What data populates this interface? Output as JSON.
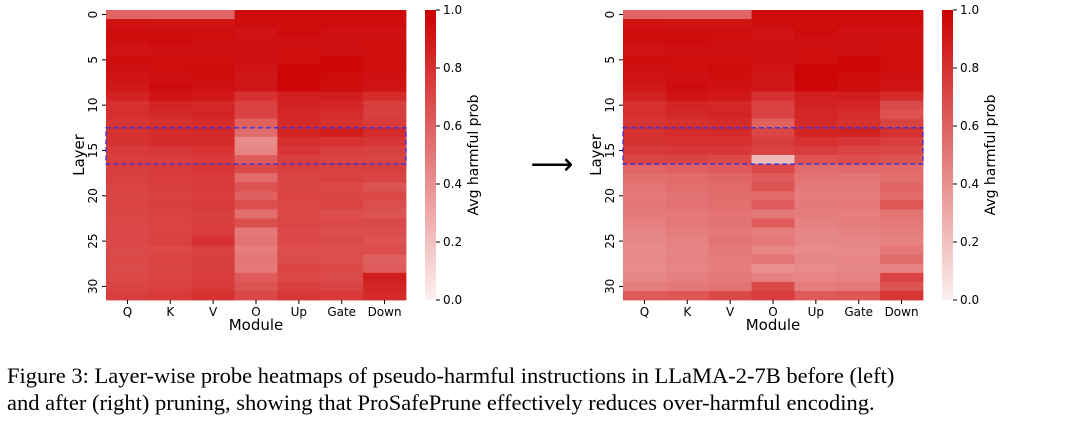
{
  "colors": {
    "high": "#cc0000",
    "low": "#fdf0f0",
    "highlight_box": "#3333dd"
  },
  "arrow_glyph": "⟶",
  "caption": {
    "line1": "Figure 3: Layer-wise probe heatmaps of pseudo-harmful instructions in LLaMA-2-7B before (left)",
    "line2": "and after (right) pruning, showing that ProSafePrune effectively reduces over-harmful encoding."
  },
  "chart_data": [
    {
      "type": "heatmap",
      "panel": "left",
      "xlabel": "Module",
      "ylabel": "Layer",
      "x_categories": [
        "Q",
        "K",
        "V",
        "O",
        "Up",
        "Gate",
        "Down"
      ],
      "y_ticks": [
        "0",
        "5",
        "10",
        "15",
        "20",
        "25",
        "30"
      ],
      "rows": 32,
      "colorbar": {
        "label": "Avg harmful prob",
        "ticks": [
          "0.0",
          "0.2",
          "0.4",
          "0.6",
          "0.8",
          "1.0"
        ],
        "range": [
          0,
          1
        ]
      },
      "highlight_layers": [
        13,
        17
      ],
      "values": [
        [
          0.58,
          0.58,
          0.58,
          0.95,
          0.95,
          0.95,
          0.95
        ],
        [
          0.93,
          0.92,
          0.92,
          0.95,
          0.94,
          0.95,
          0.95
        ],
        [
          0.95,
          0.94,
          0.94,
          0.92,
          0.95,
          0.93,
          0.93
        ],
        [
          0.94,
          0.95,
          0.94,
          0.93,
          0.93,
          0.94,
          0.94
        ],
        [
          0.92,
          0.93,
          0.93,
          0.93,
          0.94,
          0.93,
          0.94
        ],
        [
          0.95,
          0.94,
          0.94,
          0.93,
          0.94,
          0.97,
          0.94
        ],
        [
          0.93,
          0.94,
          0.95,
          0.92,
          0.97,
          0.97,
          0.94
        ],
        [
          0.92,
          0.93,
          0.94,
          0.9,
          0.98,
          0.95,
          0.93
        ],
        [
          0.9,
          0.95,
          0.93,
          0.91,
          0.97,
          0.94,
          0.92
        ],
        [
          0.86,
          0.92,
          0.9,
          0.8,
          0.87,
          0.88,
          0.82
        ],
        [
          0.8,
          0.85,
          0.84,
          0.73,
          0.86,
          0.84,
          0.74
        ],
        [
          0.81,
          0.83,
          0.85,
          0.72,
          0.84,
          0.82,
          0.73
        ],
        [
          0.78,
          0.8,
          0.82,
          0.6,
          0.83,
          0.8,
          0.76
        ],
        [
          0.8,
          0.82,
          0.83,
          0.55,
          0.85,
          0.88,
          0.82
        ],
        [
          0.79,
          0.82,
          0.82,
          0.42,
          0.81,
          0.79,
          0.78
        ],
        [
          0.76,
          0.77,
          0.79,
          0.45,
          0.78,
          0.74,
          0.73
        ],
        [
          0.74,
          0.74,
          0.76,
          0.62,
          0.74,
          0.72,
          0.71
        ],
        [
          0.74,
          0.76,
          0.78,
          0.7,
          0.74,
          0.73,
          0.74
        ],
        [
          0.73,
          0.75,
          0.76,
          0.56,
          0.72,
          0.73,
          0.72
        ],
        [
          0.72,
          0.74,
          0.76,
          0.66,
          0.71,
          0.7,
          0.66
        ],
        [
          0.71,
          0.73,
          0.75,
          0.6,
          0.72,
          0.71,
          0.7
        ],
        [
          0.72,
          0.74,
          0.76,
          0.68,
          0.7,
          0.72,
          0.68
        ],
        [
          0.71,
          0.72,
          0.73,
          0.54,
          0.7,
          0.68,
          0.66
        ],
        [
          0.7,
          0.72,
          0.74,
          0.67,
          0.71,
          0.7,
          0.7
        ],
        [
          0.69,
          0.72,
          0.75,
          0.5,
          0.69,
          0.68,
          0.68
        ],
        [
          0.7,
          0.73,
          0.8,
          0.52,
          0.7,
          0.69,
          0.66
        ],
        [
          0.69,
          0.7,
          0.73,
          0.48,
          0.68,
          0.68,
          0.68
        ],
        [
          0.7,
          0.72,
          0.74,
          0.51,
          0.69,
          0.68,
          0.6
        ],
        [
          0.69,
          0.71,
          0.74,
          0.5,
          0.72,
          0.7,
          0.62
        ],
        [
          0.7,
          0.72,
          0.75,
          0.62,
          0.7,
          0.69,
          0.88
        ],
        [
          0.72,
          0.73,
          0.76,
          0.66,
          0.74,
          0.72,
          0.85
        ],
        [
          0.74,
          0.76,
          0.79,
          0.7,
          0.77,
          0.76,
          0.82
        ]
      ]
    },
    {
      "type": "heatmap",
      "panel": "right",
      "xlabel": "Module",
      "ylabel": "Layer",
      "x_categories": [
        "Q",
        "K",
        "V",
        "O",
        "Up",
        "Gate",
        "Down"
      ],
      "y_ticks": [
        "0",
        "5",
        "10",
        "15",
        "20",
        "25",
        "30"
      ],
      "rows": 32,
      "colorbar": {
        "label": "Avg harmful prob",
        "ticks": [
          "0.0",
          "0.2",
          "0.4",
          "0.6",
          "0.8",
          "1.0"
        ],
        "range": [
          0,
          1
        ]
      },
      "highlight_layers": [
        13,
        17
      ],
      "values": [
        [
          0.58,
          0.58,
          0.58,
          0.95,
          0.95,
          0.95,
          0.95
        ],
        [
          0.93,
          0.92,
          0.92,
          0.95,
          0.94,
          0.95,
          0.95
        ],
        [
          0.95,
          0.94,
          0.94,
          0.92,
          0.95,
          0.93,
          0.93
        ],
        [
          0.94,
          0.95,
          0.94,
          0.93,
          0.93,
          0.94,
          0.94
        ],
        [
          0.92,
          0.93,
          0.93,
          0.93,
          0.94,
          0.93,
          0.94
        ],
        [
          0.95,
          0.94,
          0.94,
          0.93,
          0.94,
          0.97,
          0.94
        ],
        [
          0.93,
          0.94,
          0.95,
          0.92,
          0.97,
          0.97,
          0.94
        ],
        [
          0.92,
          0.93,
          0.94,
          0.9,
          0.98,
          0.95,
          0.93
        ],
        [
          0.9,
          0.95,
          0.93,
          0.91,
          0.97,
          0.94,
          0.92
        ],
        [
          0.86,
          0.92,
          0.9,
          0.8,
          0.87,
          0.88,
          0.82
        ],
        [
          0.8,
          0.85,
          0.84,
          0.73,
          0.86,
          0.84,
          0.7
        ],
        [
          0.81,
          0.83,
          0.85,
          0.72,
          0.84,
          0.82,
          0.66
        ],
        [
          0.78,
          0.8,
          0.82,
          0.6,
          0.83,
          0.8,
          0.72
        ],
        [
          0.8,
          0.82,
          0.83,
          0.7,
          0.85,
          0.86,
          0.8
        ],
        [
          0.79,
          0.8,
          0.8,
          0.74,
          0.8,
          0.78,
          0.74
        ],
        [
          0.76,
          0.77,
          0.77,
          0.72,
          0.75,
          0.72,
          0.7
        ],
        [
          0.72,
          0.72,
          0.7,
          0.22,
          0.66,
          0.68,
          0.66
        ],
        [
          0.58,
          0.6,
          0.62,
          0.7,
          0.55,
          0.56,
          0.56
        ],
        [
          0.54,
          0.56,
          0.58,
          0.62,
          0.52,
          0.52,
          0.54
        ],
        [
          0.52,
          0.54,
          0.56,
          0.66,
          0.5,
          0.5,
          0.58
        ],
        [
          0.5,
          0.52,
          0.55,
          0.56,
          0.48,
          0.48,
          0.56
        ],
        [
          0.51,
          0.53,
          0.54,
          0.62,
          0.49,
          0.5,
          0.64
        ],
        [
          0.49,
          0.5,
          0.52,
          0.5,
          0.48,
          0.47,
          0.52
        ],
        [
          0.47,
          0.5,
          0.52,
          0.62,
          0.46,
          0.48,
          0.5
        ],
        [
          0.45,
          0.48,
          0.5,
          0.48,
          0.44,
          0.46,
          0.48
        ],
        [
          0.44,
          0.46,
          0.52,
          0.5,
          0.44,
          0.44,
          0.46
        ],
        [
          0.42,
          0.45,
          0.5,
          0.45,
          0.42,
          0.43,
          0.5
        ],
        [
          0.43,
          0.46,
          0.48,
          0.52,
          0.44,
          0.45,
          0.55
        ],
        [
          0.42,
          0.45,
          0.48,
          0.4,
          0.42,
          0.44,
          0.46
        ],
        [
          0.44,
          0.47,
          0.5,
          0.46,
          0.45,
          0.46,
          0.72
        ],
        [
          0.48,
          0.5,
          0.52,
          0.7,
          0.48,
          0.5,
          0.66
        ],
        [
          0.62,
          0.64,
          0.7,
          0.74,
          0.62,
          0.64,
          0.78
        ]
      ]
    }
  ]
}
